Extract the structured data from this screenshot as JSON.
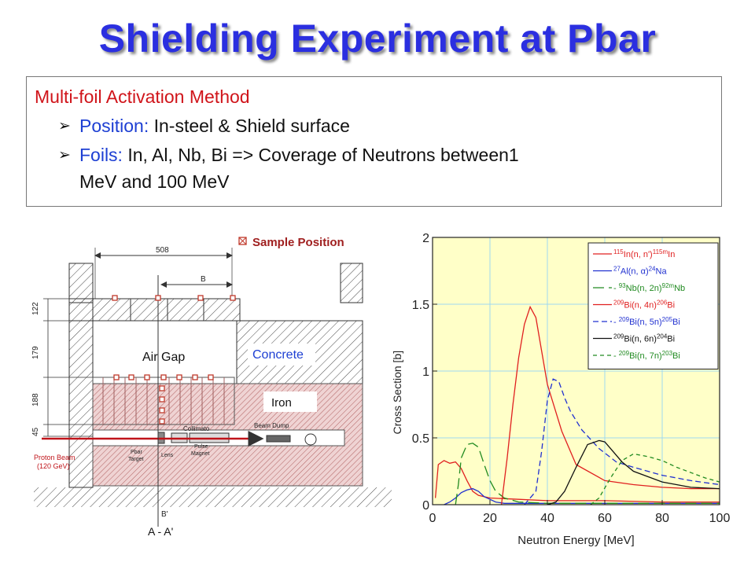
{
  "title": "Shielding Experiment at Pbar",
  "method_box": {
    "heading": "Multi-foil Activation Method",
    "bullet_glyph": "➢",
    "bullets": [
      {
        "label": "Position:",
        "text": " In-steel & Shield surface"
      },
      {
        "label": "Foils:",
        "text": " In, Al, Nb, Bi => Coverage of Neutrons between1",
        "text2": "MeV and 100 MeV"
      }
    ]
  },
  "diagram": {
    "legend_text": "Sample Position",
    "dim_top": "508",
    "dim_b": "B",
    "dim_bprime": "B'",
    "dims_left": [
      "122",
      "179",
      "188",
      "45"
    ],
    "air_gap": "Air Gap",
    "concrete": "Concrete",
    "iron": "Iron",
    "beam_dump": "Beam Dump",
    "collimator": "Collimato",
    "proton_beam": "Proton Beam",
    "proton_energy": "(120 GeV)",
    "pbar_target": [
      "Pbar",
      "Target"
    ],
    "lens": "Lens",
    "pulse_magnet": [
      "Pulse",
      "Magnet"
    ],
    "section": "A - A'",
    "colors": {
      "concrete_hatch": "#4a4a4a",
      "iron_fill": "#e8c8c8",
      "iron_hatch": "#b06060",
      "marker": "#c0392b",
      "beam": "#c0141a"
    }
  },
  "chart_data": {
    "type": "line",
    "xlabel": "Neutron Energy [MeV]",
    "ylabel": "Cross Section [b]",
    "xlim": [
      0,
      100
    ],
    "ylim": [
      0,
      2
    ],
    "xticks": [
      "0",
      "20",
      "40",
      "60",
      "80",
      "100"
    ],
    "yticks": [
      "0",
      "0.5",
      "1",
      "1.5",
      "2"
    ],
    "grid": true,
    "background": "#ffffc8",
    "legend_position": "top-right",
    "series": [
      {
        "name": "115In(n, n')115mIn",
        "color": "#e02020",
        "dash": "solid",
        "x": [
          1,
          2,
          4,
          6,
          8,
          10,
          12,
          14,
          16,
          20,
          30,
          40,
          60,
          80,
          100
        ],
        "y": [
          0.05,
          0.3,
          0.33,
          0.31,
          0.32,
          0.27,
          0.18,
          0.1,
          0.07,
          0.05,
          0.04,
          0.03,
          0.03,
          0.02,
          0.02
        ]
      },
      {
        "name": "27Al(n, α)24Na",
        "color": "#2030d0",
        "dash": "solid",
        "x": [
          4,
          6,
          8,
          10,
          12,
          14,
          16,
          18,
          20,
          22,
          25,
          30,
          40,
          60,
          80,
          100
        ],
        "y": [
          0,
          0.02,
          0.05,
          0.09,
          0.11,
          0.12,
          0.1,
          0.06,
          0.04,
          0.02,
          0.01,
          0.01,
          0.01,
          0.01,
          0.01,
          0.01
        ]
      },
      {
        "name": "93Nb(n, 2n)92mNb",
        "color": "#208a20",
        "dash": "longdash",
        "x": [
          8,
          9,
          10,
          12,
          14,
          16,
          18,
          20,
          22,
          25,
          30,
          40,
          60,
          100
        ],
        "y": [
          0,
          0.15,
          0.35,
          0.45,
          0.46,
          0.43,
          0.3,
          0.18,
          0.1,
          0.05,
          0.02,
          0.01,
          0.01,
          0.01
        ]
      },
      {
        "name": "209Bi(n, 4n)206Bi",
        "color": "#e02020",
        "dash": "solid",
        "x": [
          24,
          26,
          28,
          30,
          32,
          34,
          36,
          38,
          40,
          45,
          50,
          60,
          70,
          80,
          90,
          100
        ],
        "y": [
          0,
          0.35,
          0.75,
          1.1,
          1.35,
          1.48,
          1.4,
          1.15,
          0.9,
          0.55,
          0.3,
          0.18,
          0.15,
          0.13,
          0.12,
          0.12
        ]
      },
      {
        "name": "209Bi(n, 5n)205Bi",
        "color": "#2030d0",
        "dash": "dash",
        "x": [
          32,
          36,
          38,
          40,
          42,
          44,
          46,
          48,
          52,
          58,
          64,
          70,
          80,
          90,
          100
        ],
        "y": [
          0,
          0.1,
          0.4,
          0.78,
          0.94,
          0.92,
          0.8,
          0.7,
          0.56,
          0.42,
          0.32,
          0.28,
          0.22,
          0.18,
          0.15
        ]
      },
      {
        "name": "209Bi(n, 6n)204Bi",
        "color": "#111111",
        "dash": "solid",
        "x": [
          40,
          43,
          46,
          50,
          54,
          58,
          60,
          62,
          66,
          70,
          80,
          90,
          100
        ],
        "y": [
          0,
          0.02,
          0.1,
          0.28,
          0.45,
          0.48,
          0.47,
          0.42,
          0.32,
          0.25,
          0.17,
          0.13,
          0.12
        ]
      },
      {
        "name": "209Bi(n, 7n)203Bi",
        "color": "#208a20",
        "dash": "shortdash",
        "x": [
          55,
          58,
          62,
          66,
          70,
          75,
          80,
          85,
          90,
          95,
          100
        ],
        "y": [
          0,
          0.05,
          0.2,
          0.33,
          0.38,
          0.36,
          0.33,
          0.28,
          0.24,
          0.2,
          0.17
        ]
      }
    ],
    "legend_labels": [
      {
        "pre": "",
        "sup1": "115",
        "mid": "In(n, n')",
        "sup2": "115m",
        "post": "In"
      },
      {
        "pre": "",
        "sup1": "27",
        "mid": "Al(n, α)",
        "sup2": "24",
        "post": "Na"
      },
      {
        "pre": "- ",
        "sup1": "93",
        "mid": "Nb(n, 2n)",
        "sup2": "92m",
        "post": "Nb"
      },
      {
        "pre": "",
        "sup1": "209",
        "mid": "Bi(n, 4n)",
        "sup2": "206",
        "post": "Bi"
      },
      {
        "pre": "- ",
        "sup1": "209",
        "mid": "Bi(n, 5n)",
        "sup2": "205",
        "post": "Bi"
      },
      {
        "pre": "",
        "sup1": "209",
        "mid": "Bi(n, 6n)",
        "sup2": "204",
        "post": "Bi"
      },
      {
        "pre": "- ",
        "sup1": "209",
        "mid": "Bi(n, 7n)",
        "sup2": "203",
        "post": "Bi"
      }
    ]
  }
}
